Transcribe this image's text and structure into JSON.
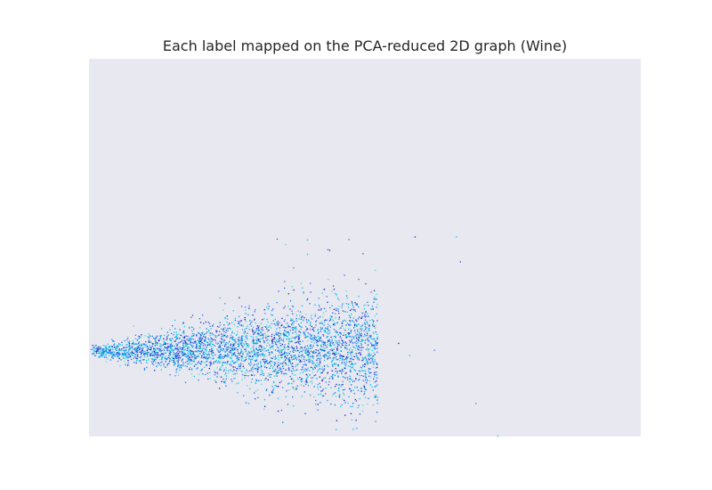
{
  "chart_data": {
    "type": "scatter",
    "title": "Each label mapped on the PCA-reduced 2D graph (Wine)",
    "xlabel": "",
    "ylabel": "",
    "xlim": [
      0,
      100
    ],
    "ylim": [
      0,
      100
    ],
    "grid": false,
    "axes_background": "#e8e8f0",
    "point_count": 3500,
    "palette": [
      "#00bfff",
      "#1e90ff",
      "#0077dd",
      "#2a4fd6",
      "#00cfe8",
      "#40e0d0",
      "#3366ff",
      "#1a1ab0"
    ],
    "outliers": [
      {
        "x": 34.0,
        "y": 52.4
      },
      {
        "x": 39.5,
        "y": 52.2
      },
      {
        "x": 35.5,
        "y": 51.0
      },
      {
        "x": 47.0,
        "y": 52.3
      },
      {
        "x": 59.0,
        "y": 53.0
      },
      {
        "x": 66.5,
        "y": 53.0
      },
      {
        "x": 37.0,
        "y": 44.8
      },
      {
        "x": 43.2,
        "y": 49.6
      },
      {
        "x": 67.2,
        "y": 46.4
      },
      {
        "x": 39.5,
        "y": 48.4
      },
      {
        "x": 52.0,
        "y": 37.8
      },
      {
        "x": 62.5,
        "y": 23.0
      },
      {
        "x": 56.0,
        "y": 24.8
      },
      {
        "x": 58.0,
        "y": 21.6
      },
      {
        "x": 70.0,
        "y": 8.9
      },
      {
        "x": 35.0,
        "y": 3.9
      },
      {
        "x": 49.0,
        "y": 6.1
      },
      {
        "x": 74.0,
        "y": 0.3
      },
      {
        "x": 46.5,
        "y": 38.7
      },
      {
        "x": 50.0,
        "y": 31.0
      }
    ]
  }
}
